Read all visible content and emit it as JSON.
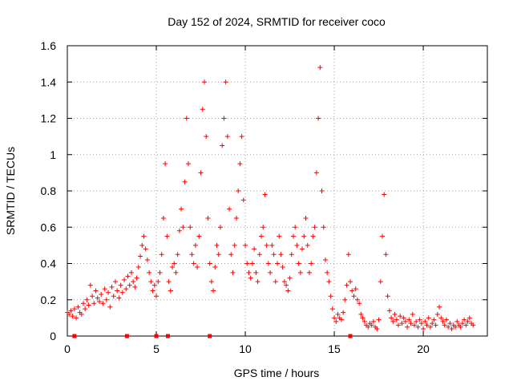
{
  "chart_data": {
    "type": "scatter",
    "title": "Day 152 of 2024, SRMTID for receiver coco",
    "xlabel": "GPS time / hours",
    "ylabel": "SRMTID / TECUs",
    "xlim": [
      0,
      23.6
    ],
    "ylim": [
      0,
      1.6
    ],
    "x_ticks": [
      0,
      5,
      10,
      15,
      20
    ],
    "x_tick_labels": [
      "0",
      "5",
      "10",
      "15",
      "20"
    ],
    "y_ticks": [
      0,
      0.2,
      0.4,
      0.6,
      0.8,
      1.0,
      1.2,
      1.4,
      1.6
    ],
    "y_tick_labels": [
      "0",
      "0.2",
      "0.4",
      "0.6",
      "0.8",
      "1",
      "1.2",
      "1.4",
      "1.6"
    ],
    "grid": true,
    "marker": "plus",
    "color": "#ff0000",
    "series": [
      {
        "name": "SRMTID",
        "points": [
          [
            0.0,
            0.13
          ],
          [
            0.1,
            0.12
          ],
          [
            0.2,
            0.14
          ],
          [
            0.3,
            0.11
          ],
          [
            0.4,
            0.15
          ],
          [
            0.5,
            0.1
          ],
          [
            0.6,
            0.16
          ],
          [
            0.7,
            0.13
          ],
          [
            0.8,
            0.12
          ],
          [
            0.9,
            0.18
          ],
          [
            1.0,
            0.15
          ],
          [
            1.1,
            0.2
          ],
          [
            1.2,
            0.17
          ],
          [
            1.3,
            0.28
          ],
          [
            1.4,
            0.22
          ],
          [
            1.5,
            0.18
          ],
          [
            1.6,
            0.25
          ],
          [
            1.7,
            0.21
          ],
          [
            1.8,
            0.19
          ],
          [
            1.9,
            0.23
          ],
          [
            2.0,
            0.18
          ],
          [
            2.1,
            0.26
          ],
          [
            2.2,
            0.2
          ],
          [
            2.3,
            0.24
          ],
          [
            2.4,
            0.16
          ],
          [
            2.5,
            0.27
          ],
          [
            2.6,
            0.22
          ],
          [
            2.7,
            0.3
          ],
          [
            2.8,
            0.25
          ],
          [
            2.9,
            0.21
          ],
          [
            3.0,
            0.28
          ],
          [
            3.1,
            0.24
          ],
          [
            3.2,
            0.31
          ],
          [
            3.3,
            0.26
          ],
          [
            3.4,
            0.33
          ],
          [
            3.5,
            0.28
          ],
          [
            3.6,
            0.35
          ],
          [
            3.7,
            0.3
          ],
          [
            3.8,
            0.27
          ],
          [
            3.9,
            0.32
          ],
          [
            4.0,
            0.38
          ],
          [
            4.1,
            0.44
          ],
          [
            4.2,
            0.5
          ],
          [
            4.3,
            0.55
          ],
          [
            4.4,
            0.48
          ],
          [
            4.5,
            0.42
          ],
          [
            4.6,
            0.35
          ],
          [
            4.7,
            0.3
          ],
          [
            4.8,
            0.25
          ],
          [
            4.9,
            0.28
          ],
          [
            5.0,
            0.22
          ],
          [
            5.1,
            0.3
          ],
          [
            5.2,
            0.35
          ],
          [
            5.3,
            0.45
          ],
          [
            5.4,
            0.65
          ],
          [
            5.5,
            0.95
          ],
          [
            5.6,
            0.55
          ],
          [
            5.7,
            0.3
          ],
          [
            5.8,
            0.25
          ],
          [
            5.9,
            0.38
          ],
          [
            6.0,
            0.4
          ],
          [
            6.1,
            0.35
          ],
          [
            6.2,
            0.45
          ],
          [
            6.3,
            0.58
          ],
          [
            6.4,
            0.7
          ],
          [
            6.5,
            0.6
          ],
          [
            6.6,
            0.85
          ],
          [
            6.7,
            1.2
          ],
          [
            6.8,
            0.95
          ],
          [
            6.9,
            0.6
          ],
          [
            7.0,
            0.45
          ],
          [
            7.1,
            0.4
          ],
          [
            7.2,
            0.5
          ],
          [
            7.3,
            0.38
          ],
          [
            7.4,
            0.55
          ],
          [
            7.5,
            0.9
          ],
          [
            7.6,
            1.25
          ],
          [
            7.7,
            1.4
          ],
          [
            7.8,
            1.1
          ],
          [
            7.9,
            0.65
          ],
          [
            8.0,
            0.4
          ],
          [
            8.1,
            0.3
          ],
          [
            8.2,
            0.25
          ],
          [
            8.3,
            0.38
          ],
          [
            8.4,
            0.5
          ],
          [
            8.5,
            0.45
          ],
          [
            8.6,
            0.6
          ],
          [
            8.7,
            1.05
          ],
          [
            8.8,
            1.2
          ],
          [
            8.9,
            1.4
          ],
          [
            9.0,
            1.1
          ],
          [
            9.1,
            0.7
          ],
          [
            9.2,
            0.45
          ],
          [
            9.3,
            0.35
          ],
          [
            9.4,
            0.5
          ],
          [
            9.5,
            0.65
          ],
          [
            9.6,
            0.8
          ],
          [
            9.7,
            0.95
          ],
          [
            9.8,
            1.1
          ],
          [
            9.9,
            0.75
          ],
          [
            10.0,
            0.5
          ],
          [
            10.1,
            0.4
          ],
          [
            10.2,
            0.35
          ],
          [
            10.3,
            0.32
          ],
          [
            10.4,
            0.4
          ],
          [
            10.5,
            0.48
          ],
          [
            10.6,
            0.35
          ],
          [
            10.7,
            0.3
          ],
          [
            10.8,
            0.45
          ],
          [
            10.9,
            0.55
          ],
          [
            11.0,
            0.6
          ],
          [
            11.1,
            0.78
          ],
          [
            11.2,
            0.5
          ],
          [
            11.3,
            0.4
          ],
          [
            11.4,
            0.35
          ],
          [
            11.5,
            0.5
          ],
          [
            11.6,
            0.45
          ],
          [
            11.7,
            0.3
          ],
          [
            11.8,
            0.4
          ],
          [
            11.9,
            0.55
          ],
          [
            12.0,
            0.45
          ],
          [
            12.1,
            0.38
          ],
          [
            12.2,
            0.3
          ],
          [
            12.3,
            0.28
          ],
          [
            12.4,
            0.25
          ],
          [
            12.5,
            0.32
          ],
          [
            12.6,
            0.45
          ],
          [
            12.7,
            0.55
          ],
          [
            12.8,
            0.6
          ],
          [
            12.9,
            0.5
          ],
          [
            13.0,
            0.4
          ],
          [
            13.1,
            0.35
          ],
          [
            13.2,
            0.48
          ],
          [
            13.3,
            0.55
          ],
          [
            13.4,
            0.65
          ],
          [
            13.5,
            0.5
          ],
          [
            13.6,
            0.35
          ],
          [
            13.7,
            0.4
          ],
          [
            13.8,
            0.55
          ],
          [
            13.9,
            0.6
          ],
          [
            14.0,
            0.9
          ],
          [
            14.1,
            1.2
          ],
          [
            14.2,
            1.48
          ],
          [
            14.3,
            0.8
          ],
          [
            14.4,
            0.6
          ],
          [
            14.5,
            0.42
          ],
          [
            14.6,
            0.35
          ],
          [
            14.7,
            0.3
          ],
          [
            14.8,
            0.22
          ],
          [
            14.9,
            0.15
          ],
          [
            15.0,
            0.1
          ],
          [
            15.1,
            0.08
          ],
          [
            15.2,
            0.12
          ],
          [
            15.3,
            0.1
          ],
          [
            15.4,
            0.09
          ],
          [
            15.5,
            0.13
          ],
          [
            15.6,
            0.2
          ],
          [
            15.7,
            0.28
          ],
          [
            15.8,
            0.45
          ],
          [
            15.9,
            0.3
          ],
          [
            16.0,
            0.25
          ],
          [
            16.1,
            0.22
          ],
          [
            16.2,
            0.26
          ],
          [
            16.3,
            0.2
          ],
          [
            16.4,
            0.18
          ],
          [
            16.5,
            0.12
          ],
          [
            16.6,
            0.1
          ],
          [
            16.7,
            0.08
          ],
          [
            16.8,
            0.06
          ],
          [
            16.9,
            0.05
          ],
          [
            17.0,
            0.07
          ],
          [
            17.1,
            0.06
          ],
          [
            17.2,
            0.08
          ],
          [
            17.3,
            0.05
          ],
          [
            17.4,
            0.04
          ],
          [
            17.5,
            0.09
          ],
          [
            17.6,
            0.3
          ],
          [
            17.7,
            0.55
          ],
          [
            17.8,
            0.78
          ],
          [
            17.9,
            0.45
          ],
          [
            18.0,
            0.22
          ],
          [
            18.1,
            0.14
          ],
          [
            18.2,
            0.1
          ],
          [
            18.3,
            0.08
          ],
          [
            18.4,
            0.12
          ],
          [
            18.5,
            0.09
          ],
          [
            18.6,
            0.06
          ],
          [
            18.7,
            0.11
          ],
          [
            18.8,
            0.07
          ],
          [
            18.9,
            0.1
          ],
          [
            19.0,
            0.08
          ],
          [
            19.1,
            0.05
          ],
          [
            19.2,
            0.09
          ],
          [
            19.3,
            0.07
          ],
          [
            19.4,
            0.12
          ],
          [
            19.5,
            0.06
          ],
          [
            19.6,
            0.08
          ],
          [
            19.7,
            0.05
          ],
          [
            19.8,
            0.09
          ],
          [
            19.9,
            0.07
          ],
          [
            20.0,
            0.04
          ],
          [
            20.1,
            0.08
          ],
          [
            20.2,
            0.06
          ],
          [
            20.3,
            0.1
          ],
          [
            20.4,
            0.05
          ],
          [
            20.5,
            0.07
          ],
          [
            20.6,
            0.09
          ],
          [
            20.7,
            0.06
          ],
          [
            20.8,
            0.12
          ],
          [
            20.9,
            0.16
          ],
          [
            21.0,
            0.1
          ],
          [
            21.1,
            0.08
          ],
          [
            21.2,
            0.06
          ],
          [
            21.3,
            0.09
          ],
          [
            21.4,
            0.05
          ],
          [
            21.5,
            0.07
          ],
          [
            21.6,
            0.04
          ],
          [
            21.7,
            0.06
          ],
          [
            21.8,
            0.05
          ],
          [
            21.9,
            0.08
          ],
          [
            22.0,
            0.06
          ],
          [
            22.1,
            0.05
          ],
          [
            22.2,
            0.07
          ],
          [
            22.3,
            0.09
          ],
          [
            22.4,
            0.06
          ],
          [
            22.5,
            0.08
          ],
          [
            22.6,
            0.1
          ],
          [
            22.7,
            0.07
          ],
          [
            22.8,
            0.06
          ]
        ]
      }
    ],
    "baseline_markers": [
      0.4,
      3.35,
      5.0,
      5.65,
      8.0,
      15.9
    ]
  }
}
